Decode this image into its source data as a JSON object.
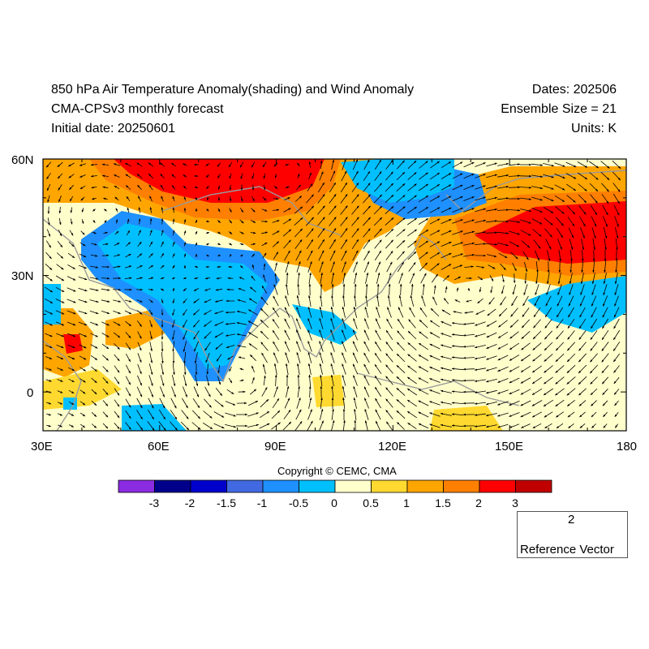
{
  "header": {
    "title": "850 hPa Air Temperature Anomaly(shading) and Wind Anomaly",
    "model": "CMA-CPSv3 monthly forecast",
    "initial_date": "Initial date: 20250601",
    "dates": "Dates: 202506",
    "ensemble": "Ensemble Size = 21",
    "units": "Units: K"
  },
  "axes": {
    "lon_labels": [
      "30E",
      "60E",
      "90E",
      "120E",
      "150E",
      "180"
    ],
    "lat_labels": [
      "60N",
      "30N",
      "0"
    ],
    "lon_range": [
      30,
      180
    ],
    "lat_range": [
      -10,
      60
    ]
  },
  "copyright": "Copyright © CEMC, CMA",
  "colorbar": {
    "colors": [
      "#8b2be2",
      "#00008b",
      "#0000cd",
      "#4169e1",
      "#1e90ff",
      "#00bfff",
      "#ffffcc",
      "#ffd92f",
      "#ffa500",
      "#ff7f00",
      "#ff0000",
      "#c00000"
    ],
    "labels": [
      "-3",
      "-2",
      "-1.5",
      "-1",
      "-0.5",
      "0",
      "0.5",
      "1",
      "1.5",
      "2",
      "3"
    ]
  },
  "reference_vector": {
    "magnitude": "2",
    "label": "Reference Vector"
  }
}
